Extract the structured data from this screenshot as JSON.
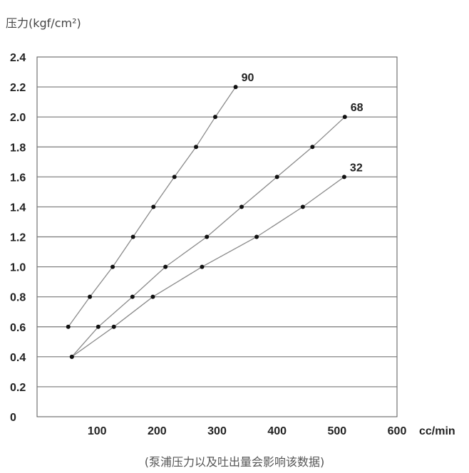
{
  "chart_data": {
    "type": "line",
    "ylabel": "压力(kgf/cm²)",
    "xlabel": "cc/min",
    "caption": "(泵浦压力以及吐出量会影响该数据)",
    "xlim": [
      0,
      600
    ],
    "ylim": [
      0,
      2.4
    ],
    "x_ticks": [
      "100",
      "200",
      "300",
      "400",
      "500",
      "600"
    ],
    "y_ticks": [
      "0",
      "0.2",
      "0.4",
      "0.6",
      "0.8",
      "1.0",
      "1.2",
      "1.4",
      "1.6",
      "1.8",
      "2.0",
      "2.2",
      "2.4"
    ],
    "grid": "horizontal",
    "series": [
      {
        "name": "90",
        "points": [
          [
            52,
            0.6
          ],
          [
            88,
            0.8
          ],
          [
            126,
            1.0
          ],
          [
            160,
            1.2
          ],
          [
            194,
            1.4
          ],
          [
            229,
            1.6
          ],
          [
            265,
            1.8
          ],
          [
            297,
            2.0
          ],
          [
            331,
            2.2
          ]
        ]
      },
      {
        "name": "68",
        "points": [
          [
            58,
            0.4
          ],
          [
            102,
            0.6
          ],
          [
            159,
            0.8
          ],
          [
            214,
            1.0
          ],
          [
            283,
            1.2
          ],
          [
            341,
            1.4
          ],
          [
            400,
            1.6
          ],
          [
            459,
            1.8
          ],
          [
            513,
            2.0
          ]
        ]
      },
      {
        "name": "32",
        "points": [
          [
            58,
            0.4
          ],
          [
            128,
            0.6
          ],
          [
            193,
            0.8
          ],
          [
            275,
            1.0
          ],
          [
            366,
            1.2
          ],
          [
            443,
            1.4
          ],
          [
            512,
            1.6
          ]
        ]
      }
    ]
  }
}
